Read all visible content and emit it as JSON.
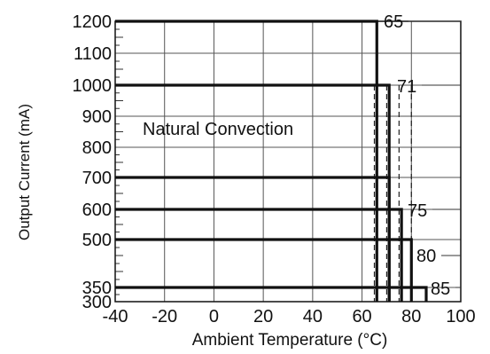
{
  "chart_data": {
    "type": "line",
    "title": "",
    "xlabel": "Ambient Temperature (°C)",
    "ylabel": "Output Current (mA)",
    "xlim": [
      -40,
      100
    ],
    "ylim": [
      300,
      1200
    ],
    "x_ticks": [
      -40,
      -20,
      0,
      20,
      40,
      60,
      80,
      100
    ],
    "x_tick_labels": [
      "-40",
      "-20",
      "0",
      "20",
      "40",
      "60",
      "80",
      "100"
    ],
    "y_ticks": [
      300,
      350,
      500,
      600,
      700,
      800,
      900,
      1000,
      1100,
      1200
    ],
    "y_tick_labels": [
      "300",
      "350",
      "500",
      "600",
      "700",
      "800",
      "900",
      "1000",
      "1100",
      "1200"
    ],
    "grid": true,
    "annotation": "Natural Convection",
    "series": [
      {
        "current": 1200,
        "label": "65",
        "x": [
          -40,
          66,
          66
        ],
        "y": [
          1200,
          1200,
          300
        ]
      },
      {
        "current": 1000,
        "label": "71",
        "x": [
          -40,
          71,
          71
        ],
        "y": [
          1000,
          1000,
          300
        ]
      },
      {
        "current": 700,
        "label": "",
        "x": [
          -40,
          71,
          71
        ],
        "y": [
          700,
          700,
          300
        ]
      },
      {
        "current": 600,
        "label": "75",
        "x": [
          -40,
          76,
          76
        ],
        "y": [
          600,
          600,
          300
        ]
      },
      {
        "current": 500,
        "label": "80",
        "x": [
          -40,
          80,
          80
        ],
        "y": [
          500,
          500,
          300
        ]
      },
      {
        "current": 350,
        "label": "85",
        "x": [
          -40,
          86,
          86
        ],
        "y": [
          350,
          350,
          300
        ]
      }
    ],
    "dashed_lines_x": [
      65,
      70,
      75,
      80
    ]
  }
}
